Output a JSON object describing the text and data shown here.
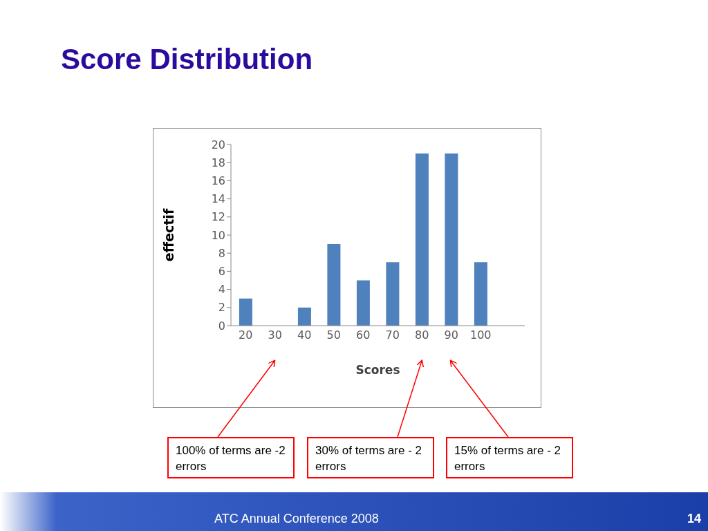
{
  "chart_data": {
    "type": "bar",
    "title": "Score Distribution",
    "xlabel": "Scores",
    "ylabel": "effectif",
    "categories": [
      "20",
      "30",
      "40",
      "50",
      "60",
      "70",
      "80",
      "90",
      "100",
      null
    ],
    "values": [
      3,
      0,
      2,
      9,
      5,
      7,
      19,
      19,
      7,
      null
    ],
    "color": "#4f81bd",
    "ylim": [
      0,
      20
    ],
    "yticks": [
      0,
      2,
      4,
      6,
      8,
      10,
      12,
      14,
      16,
      18,
      20
    ],
    "annotations": [
      "100% of terms are -2 errors",
      "30% of terms are - 2 errors",
      "15% of terms are - 2 errors",
      "ATC Annual Conference 2008",
      "14"
    ]
  }
}
